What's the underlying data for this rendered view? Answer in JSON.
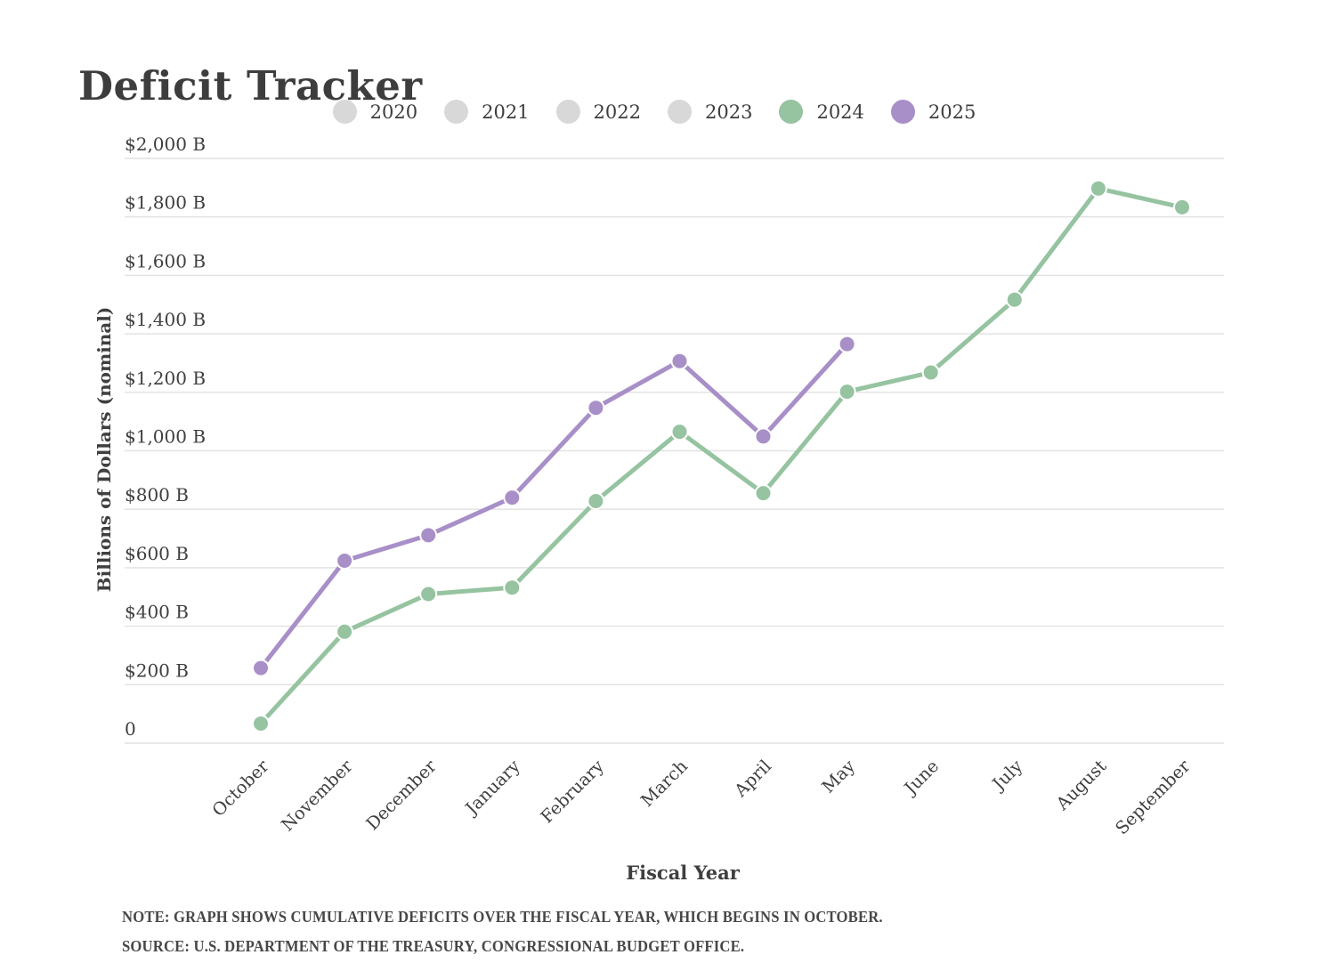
{
  "title": "Deficit Tracker",
  "legend": {
    "items": [
      {
        "label": "2020",
        "color": "#d8d8d8",
        "active": false
      },
      {
        "label": "2021",
        "color": "#d8d8d8",
        "active": false
      },
      {
        "label": "2022",
        "color": "#d8d8d8",
        "active": false
      },
      {
        "label": "2023",
        "color": "#d8d8d8",
        "active": false
      },
      {
        "label": "2024",
        "color": "#96c3a0",
        "active": true
      },
      {
        "label": "2025",
        "color": "#a88fc8",
        "active": true
      }
    ]
  },
  "chart_data": {
    "type": "line",
    "x": [
      "October",
      "November",
      "December",
      "January",
      "February",
      "March",
      "April",
      "May",
      "June",
      "July",
      "August",
      "September"
    ],
    "series": [
      {
        "name": "2024",
        "color": "#96c3a0",
        "values": [
          67,
          381,
          510,
          532,
          828,
          1065,
          855,
          1202,
          1268,
          1517,
          1897,
          1833
        ]
      },
      {
        "name": "2025",
        "color": "#a88fc8",
        "values": [
          257,
          624,
          711,
          840,
          1147,
          1307,
          1049,
          1365,
          null,
          null,
          null,
          null
        ]
      }
    ],
    "title": "Deficit Tracker",
    "xlabel": "Fiscal Year",
    "ylabel": "Billions of Dollars (nominal)",
    "ylim": [
      0,
      2000
    ],
    "ytick_step": 200,
    "ytick_labels": [
      "0",
      "$200 B",
      "$400 B",
      "$600 B",
      "$800 B",
      "$1,000 B",
      "$1,200 B",
      "$1,400 B",
      "$1,600 B",
      "$1,800 B",
      "$2,000 B"
    ],
    "grid": true,
    "legend_position": "top",
    "units": "billions of dollars"
  },
  "colors": {
    "grid": "#e1e1e1",
    "text": "#3f3f3f",
    "title": "#3d3d3d",
    "inactive_legend": "#d8d8d8",
    "series_2024": "#96c3a0",
    "series_2025": "#a88fc8"
  },
  "notes": {
    "note": "NOTE: GRAPH SHOWS CUMULATIVE DEFICITS OVER THE FISCAL YEAR, WHICH BEGINS IN OCTOBER.",
    "source": "SOURCE: U.S. DEPARTMENT OF THE TREASURY, CONGRESSIONAL BUDGET OFFICE."
  }
}
